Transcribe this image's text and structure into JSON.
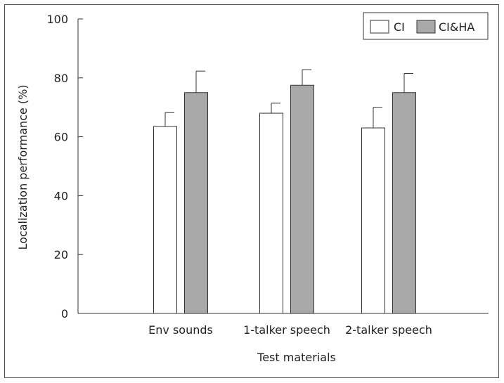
{
  "chart_data": {
    "type": "bar",
    "xlabel": "Test materials",
    "ylabel": "Localization performance (%)",
    "ylim": [
      0,
      100
    ],
    "yticks": [
      0,
      20,
      40,
      60,
      80,
      100
    ],
    "categories": [
      "Env sounds",
      "1-talker speech",
      "2-talker speech"
    ],
    "series": [
      {
        "name": "CI",
        "values": [
          63.5,
          68.0,
          63.0
        ],
        "errors": [
          4.7,
          3.4,
          7.0
        ],
        "color": "#ffffff"
      },
      {
        "name": "CI&HA",
        "values": [
          75.0,
          77.5,
          75.0
        ],
        "errors": [
          7.3,
          5.3,
          6.5
        ],
        "color": "#a9a9a9"
      }
    ],
    "legend_position": "top-right",
    "grid": false
  }
}
